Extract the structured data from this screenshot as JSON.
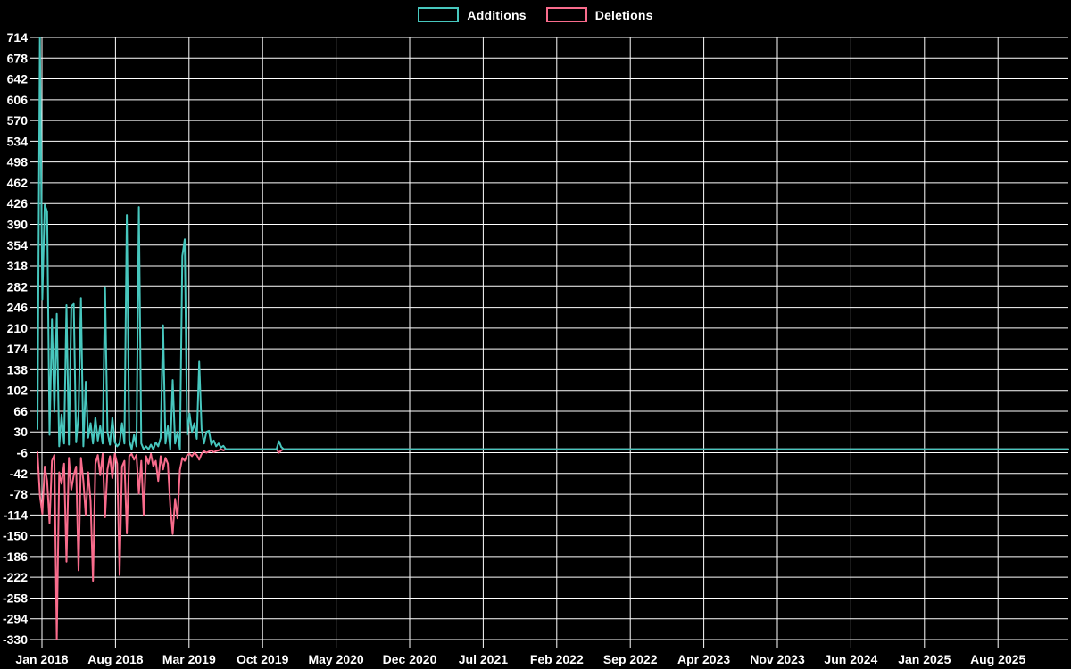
{
  "legend": {
    "items": [
      {
        "label": "Additions",
        "color": "#47c7be"
      },
      {
        "label": "Deletions",
        "color": "#f96c8c"
      }
    ]
  },
  "chart_data": {
    "type": "line",
    "title": "",
    "background_color": "#000000",
    "grid": true,
    "grid_color": "#ffffff",
    "text_color": "#ffffff",
    "legend_position": "top-center",
    "ylim": [
      -330,
      714
    ],
    "y_tick_step": 36,
    "y_tick_labels": [
      "714",
      "678",
      "642",
      "606",
      "570",
      "534",
      "498",
      "462",
      "426",
      "390",
      "354",
      "318",
      "282",
      "246",
      "210",
      "174",
      "138",
      "102",
      "66",
      "30",
      "-6",
      "-42",
      "-78",
      "-114",
      "-150",
      "-186",
      "-222",
      "-258",
      "-294",
      "-330"
    ],
    "x_tick_labels": [
      "Jan 2018",
      "Aug 2018",
      "Mar 2019",
      "Oct 2019",
      "May 2020",
      "Dec 2020",
      "Jul 2021",
      "Feb 2022",
      "Sep 2022",
      "Apr 2023",
      "Nov 2023",
      "Jun 2024",
      "Jan 2025",
      "Aug 2025"
    ],
    "x_unit": "week",
    "series": [
      {
        "name": "Additions",
        "color": "#47c7be",
        "values": [
          35,
          714,
          260,
          424,
          412,
          25,
          225,
          65,
          235,
          5,
          60,
          10,
          250,
          8,
          248,
          252,
          12,
          60,
          262,
          5,
          117,
          20,
          45,
          10,
          55,
          15,
          40,
          10,
          280,
          30,
          8,
          55,
          12,
          5,
          10,
          45,
          10,
          406,
          15,
          0,
          25,
          5,
          420,
          10,
          0,
          5,
          0,
          8,
          0,
          12,
          5,
          20,
          215,
          10,
          40,
          0,
          120,
          10,
          30,
          0,
          335,
          364,
          25,
          62,
          30,
          45,
          18,
          152,
          35,
          10,
          30,
          32,
          8,
          15,
          5,
          10,
          3,
          6,
          0,
          0,
          0,
          0,
          0,
          0,
          0,
          0,
          0,
          0,
          0,
          0,
          0,
          0,
          0,
          0,
          0,
          0,
          0,
          0,
          0,
          0,
          14,
          4,
          0,
          0,
          0
        ]
      },
      {
        "name": "Deletions",
        "color": "#f96c8c",
        "values": [
          -5,
          -80,
          -112,
          -30,
          -55,
          -128,
          -20,
          -10,
          -330,
          -40,
          -60,
          -25,
          -195,
          -15,
          -70,
          -45,
          -30,
          -210,
          -15,
          -55,
          -115,
          -40,
          -90,
          -228,
          -25,
          -10,
          -45,
          -8,
          -118,
          -35,
          -12,
          -50,
          -8,
          -25,
          -218,
          -30,
          -20,
          -146,
          -12,
          -8,
          -18,
          -10,
          -77,
          -20,
          -114,
          -12,
          -25,
          -8,
          -30,
          -20,
          -55,
          -12,
          -35,
          -15,
          -25,
          -99,
          -147,
          -86,
          -120,
          -36,
          -15,
          -20,
          -10,
          -8,
          -12,
          -6,
          -10,
          -18,
          -8,
          -3,
          -6,
          -4,
          -2,
          -5,
          -3,
          -2,
          0,
          -2,
          0,
          0,
          0,
          0,
          0,
          0,
          0,
          0,
          0,
          0,
          0,
          0,
          0,
          0,
          0,
          0,
          0,
          0,
          0,
          0,
          0,
          0,
          -6,
          -2,
          0,
          0,
          0
        ]
      }
    ],
    "flat_zero_until_right_edge": true
  }
}
